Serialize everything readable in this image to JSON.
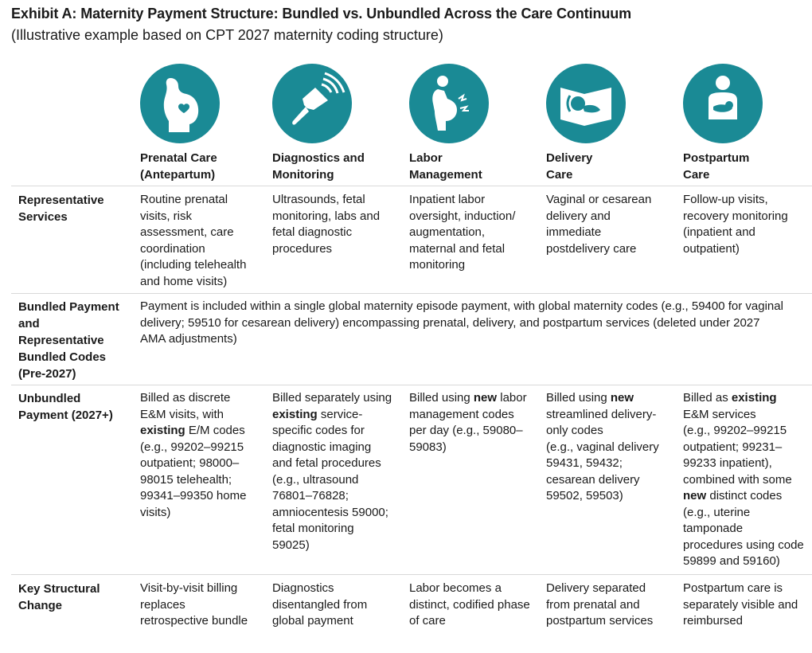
{
  "title": "Exhibit A: Maternity Payment Structure: Bundled vs. Unbundled Across the Care Continuum",
  "subtitle": "(Illustrative example based on CPT 2027 maternity coding structure)",
  "accent_color": "#1a8a95",
  "columns": [
    {
      "icon": "pregnant-belly-heart-icon",
      "line1": "Prenatal Care",
      "line2": "(Antepartum)"
    },
    {
      "icon": "ultrasound-probe-icon",
      "line1": "Diagnostics and",
      "line2": "Monitoring"
    },
    {
      "icon": "labor-contraction-icon",
      "line1": "Labor",
      "line2": "Management"
    },
    {
      "icon": "baby-delivery-icon",
      "line1": "Delivery",
      "line2": "Care"
    },
    {
      "icon": "mother-holding-baby-icon",
      "line1": "Postpartum",
      "line2": "Care"
    }
  ],
  "rows": {
    "representative_services": {
      "header_lines": [
        "Representative",
        "Services"
      ],
      "cells": [
        [
          "Routine prenatal",
          "visits, risk",
          "assessment, care",
          "coordination",
          "(including telehealth",
          "and home visits)"
        ],
        [
          "Ultrasounds, fetal",
          "monitoring, labs and",
          "fetal diagnostic",
          "procedures"
        ],
        [
          "Inpatient labor",
          "oversight, induction/",
          "augmentation,",
          "maternal and fetal",
          "monitoring"
        ],
        [
          "Vaginal or cesarean",
          "delivery and",
          "immediate",
          "postdelivery care"
        ],
        [
          "Follow-up visits,",
          "recovery monitoring",
          "(inpatient and",
          "outpatient)"
        ]
      ]
    },
    "bundled_payment": {
      "header_lines": [
        "Bundled Payment",
        "and",
        "Representative",
        "Bundled Codes",
        "(Pre-2027)"
      ],
      "text_lines": [
        "Payment is included within a single global maternity episode payment, with global maternity codes (e.g., 59400 for vaginal",
        "delivery; 59510 for cesarean delivery) encompassing prenatal, delivery, and postpartum services (deleted under 2027",
        "AMA adjustments)"
      ]
    },
    "unbundled_payment": {
      "header_lines": [
        "Unbundled",
        "Payment (2027+)"
      ],
      "cells": [
        [
          "Billed as discrete",
          "E&M visits, with",
          "{existing} E/M codes",
          "(e.g., 99202–99215",
          "outpatient; 98000–",
          "98015 telehealth;",
          "99341–99350 home",
          "visits)"
        ],
        [
          "Billed separately using",
          "{existing} service-",
          "specific codes for",
          "diagnostic imaging",
          "and fetal procedures",
          "(e.g., ultrasound",
          "76801–76828;",
          "amniocentesis 59000;",
          "fetal monitoring",
          "59025)"
        ],
        [
          "Billed using {new} labor",
          "management codes",
          "per day (e.g., 59080–",
          "59083)"
        ],
        [
          "Billed using {new}",
          "streamlined delivery-",
          "only codes",
          "(e.g., vaginal delivery",
          "59431, 59432;",
          "cesarean delivery",
          "59502, 59503)"
        ],
        [
          "Billed as {existing}",
          "E&M services",
          "(e.g., 99202–99215",
          "outpatient; 99231–",
          "99233 inpatient),",
          "combined with some",
          "{new} distinct codes",
          "(e.g., uterine",
          "tamponade",
          "procedures using code",
          "59899 and 59160)"
        ]
      ]
    },
    "key_structural_change": {
      "header_lines": [
        "Key Structural",
        "Change"
      ],
      "cells": [
        [
          "Visit-by-visit billing",
          "replaces",
          "retrospective bundle"
        ],
        [
          "Diagnostics",
          "disentangled from",
          "global payment"
        ],
        [
          "Labor becomes a",
          "distinct, codified phase",
          "of care"
        ],
        [
          "Delivery separated",
          "from prenatal and",
          "postpartum services"
        ],
        [
          "Postpartum care is",
          "separately visible and",
          "reimbursed"
        ]
      ]
    }
  }
}
